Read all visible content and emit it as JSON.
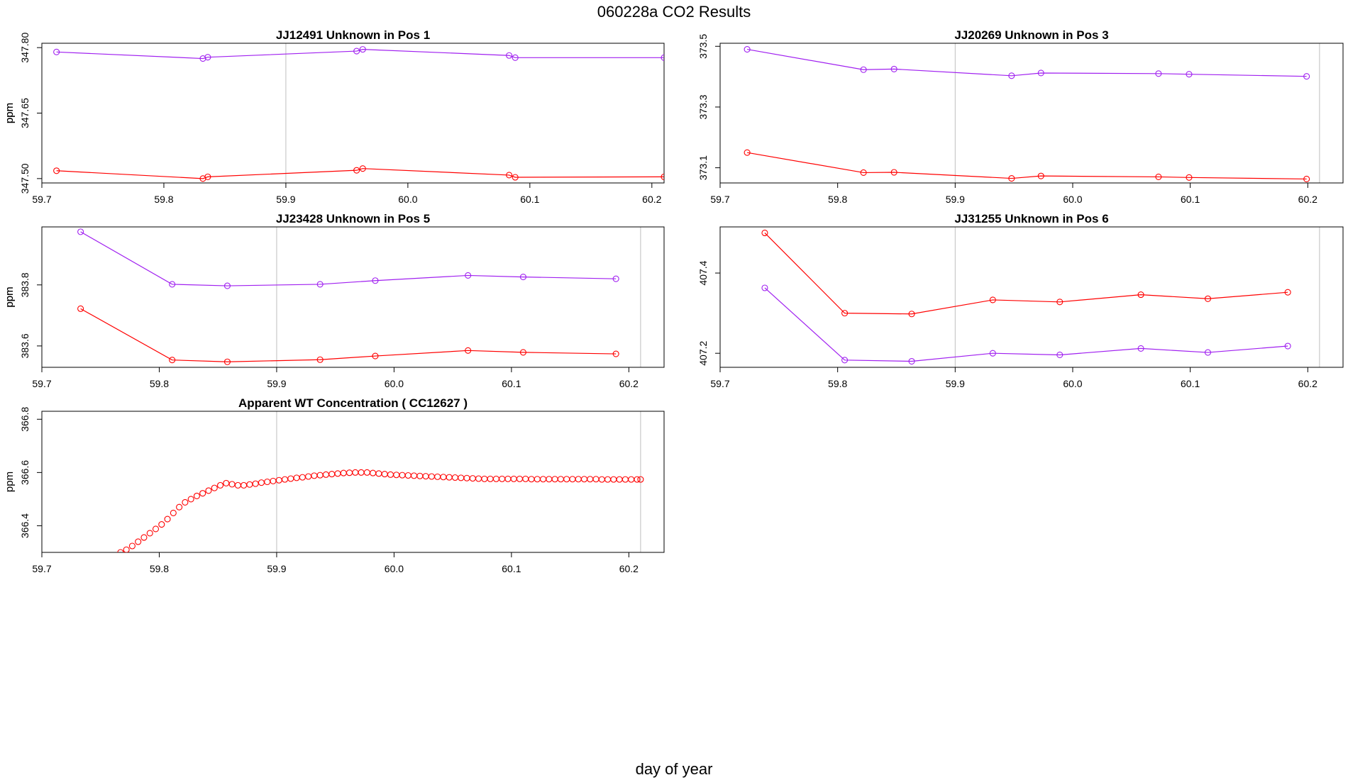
{
  "figure": {
    "title": "060228a  CO2 Results",
    "xlabel": "day of year"
  },
  "colors": {
    "purple": "#a020f0",
    "red": "#ff0000",
    "axis": "#000000",
    "vline": "#bebebe"
  },
  "chart_data": [
    {
      "type": "line",
      "title": "JJ12491    Unknown in Pos 1",
      "ylabel": "ppm",
      "xlim": [
        59.7,
        60.21
      ],
      "ylim": [
        347.49,
        347.81
      ],
      "xticks": [
        59.7,
        59.8,
        59.9,
        60.0,
        60.1,
        60.2
      ],
      "xtick_labels": [
        "59.7",
        "59.8",
        "59.9",
        "60.0",
        "60.1",
        "60.2"
      ],
      "yticks": [
        347.5,
        347.65,
        347.8
      ],
      "ytick_labels": [
        "347.50",
        "347.65",
        "347.80"
      ],
      "vlines": [
        59.9,
        60.21
      ],
      "series": [
        {
          "name": "purple",
          "color": "#a020f0",
          "x": [
            59.712,
            59.832,
            59.836,
            59.958,
            59.963,
            60.083,
            60.088,
            60.21
          ],
          "y": [
            347.79,
            347.775,
            347.778,
            347.792,
            347.796,
            347.782,
            347.777,
            347.777
          ]
        },
        {
          "name": "red",
          "color": "#ff0000",
          "x": [
            59.712,
            59.832,
            59.836,
            59.958,
            59.963,
            60.083,
            60.088,
            60.21
          ],
          "y": [
            347.518,
            347.5,
            347.504,
            347.519,
            347.523,
            347.508,
            347.503,
            347.504
          ]
        }
      ]
    },
    {
      "type": "line",
      "title": "JJ20269    Unknown in Pos 3",
      "ylabel": "ppm",
      "xlim": [
        59.7,
        60.23
      ],
      "ylim": [
        373.05,
        373.51
      ],
      "xticks": [
        59.7,
        59.8,
        59.9,
        60.0,
        60.1,
        60.2
      ],
      "xtick_labels": [
        "59.7",
        "59.8",
        "59.9",
        "60.0",
        "60.1",
        "60.2"
      ],
      "yticks": [
        373.1,
        373.3,
        373.5
      ],
      "ytick_labels": [
        "373.1",
        "373.3",
        "373.5"
      ],
      "vlines": [
        59.9,
        60.21
      ],
      "series": [
        {
          "name": "purple",
          "color": "#a020f0",
          "x": [
            59.723,
            59.822,
            59.848,
            59.948,
            59.973,
            60.073,
            60.099,
            60.199
          ],
          "y": [
            373.49,
            373.423,
            373.425,
            373.403,
            373.412,
            373.41,
            373.408,
            373.401
          ]
        },
        {
          "name": "red",
          "color": "#ff0000",
          "x": [
            59.723,
            59.822,
            59.848,
            59.948,
            59.973,
            60.073,
            60.099,
            60.199
          ],
          "y": [
            373.15,
            373.084,
            373.085,
            373.065,
            373.073,
            373.07,
            373.068,
            373.063
          ]
        }
      ]
    },
    {
      "type": "line",
      "title": "JJ23428    Unknown in Pos 5",
      "ylabel": "ppm",
      "xlim": [
        59.7,
        60.23
      ],
      "ylim": [
        383.53,
        383.99
      ],
      "xticks": [
        59.7,
        59.8,
        59.9,
        60.0,
        60.1,
        60.2
      ],
      "xtick_labels": [
        "59.7",
        "59.8",
        "59.9",
        "60.0",
        "60.1",
        "60.2"
      ],
      "yticks": [
        383.6,
        383.8
      ],
      "ytick_labels": [
        "383.6",
        "383.8"
      ],
      "vlines": [
        59.9,
        60.21
      ],
      "series": [
        {
          "name": "purple",
          "color": "#a020f0",
          "x": [
            59.733,
            59.811,
            59.858,
            59.937,
            59.984,
            60.063,
            60.11,
            60.189
          ],
          "y": [
            383.974,
            383.802,
            383.797,
            383.802,
            383.814,
            383.831,
            383.826,
            383.82
          ]
        },
        {
          "name": "red",
          "color": "#ff0000",
          "x": [
            59.733,
            59.811,
            59.858,
            59.937,
            59.984,
            60.063,
            60.11,
            60.189
          ],
          "y": [
            383.722,
            383.554,
            383.548,
            383.555,
            383.567,
            383.585,
            383.579,
            383.574
          ]
        }
      ]
    },
    {
      "type": "line",
      "title": "JJ31255    Unknown in Pos 6",
      "ylabel": "ppm",
      "xlim": [
        59.7,
        60.23
      ],
      "ylim": [
        407.165,
        407.515
      ],
      "xticks": [
        59.7,
        59.8,
        59.9,
        60.0,
        60.1,
        60.2
      ],
      "xtick_labels": [
        "59.7",
        "59.8",
        "59.9",
        "60.0",
        "60.1",
        "60.2"
      ],
      "yticks": [
        407.2,
        407.4
      ],
      "ytick_labels": [
        "407.2",
        "407.4"
      ],
      "vlines": [
        59.9,
        60.21
      ],
      "series": [
        {
          "name": "red",
          "color": "#ff0000",
          "x": [
            59.738,
            59.806,
            59.863,
            59.932,
            59.989,
            60.058,
            60.115,
            60.183
          ],
          "y": [
            407.5,
            407.3,
            407.298,
            407.333,
            407.328,
            407.346,
            407.336,
            407.352
          ]
        },
        {
          "name": "purple",
          "color": "#a020f0",
          "x": [
            59.738,
            59.806,
            59.863,
            59.932,
            59.989,
            60.058,
            60.115,
            60.183
          ],
          "y": [
            407.363,
            407.183,
            407.18,
            407.2,
            407.196,
            407.212,
            407.202,
            407.218
          ]
        }
      ]
    },
    {
      "type": "scatter",
      "title": "Apparent WT Concentration ( CC12627 )",
      "ylabel": "ppm",
      "xlim": [
        59.7,
        60.23
      ],
      "ylim": [
        366.3,
        366.83
      ],
      "xticks": [
        59.7,
        59.8,
        59.9,
        60.0,
        60.1,
        60.2
      ],
      "xtick_labels": [
        "59.7",
        "59.8",
        "59.9",
        "60.0",
        "60.1",
        "60.2"
      ],
      "yticks": [
        366.4,
        366.6,
        366.8
      ],
      "ytick_labels": [
        "366.4",
        "366.6",
        "366.8"
      ],
      "vlines": [
        59.9,
        60.21
      ],
      "series": [
        {
          "name": "red",
          "color": "#ff0000",
          "x": [
            59.767,
            59.772,
            59.777,
            59.782,
            59.787,
            59.792,
            59.797,
            59.802,
            59.807,
            59.812,
            59.817,
            59.822,
            59.827,
            59.832,
            59.837,
            59.842,
            59.847,
            59.852,
            59.857,
            59.862,
            59.867,
            59.872,
            59.877,
            59.882,
            59.887,
            59.892,
            59.897,
            59.902,
            59.907,
            59.912,
            59.917,
            59.922,
            59.927,
            59.932,
            59.937,
            59.942,
            59.947,
            59.952,
            59.957,
            59.962,
            59.967,
            59.972,
            59.977,
            59.982,
            59.987,
            59.992,
            59.997,
            60.002,
            60.007,
            60.012,
            60.017,
            60.022,
            60.027,
            60.032,
            60.037,
            60.042,
            60.047,
            60.052,
            60.057,
            60.062,
            60.067,
            60.072,
            60.077,
            60.082,
            60.087,
            60.092,
            60.097,
            60.102,
            60.107,
            60.112,
            60.117,
            60.122,
            60.127,
            60.132,
            60.137,
            60.142,
            60.147,
            60.152,
            60.157,
            60.162,
            60.167,
            60.172,
            60.177,
            60.182,
            60.187,
            60.192,
            60.197,
            60.202,
            60.207,
            60.21
          ],
          "y": [
            366.3,
            366.31,
            366.324,
            366.34,
            366.356,
            366.372,
            366.388,
            366.405,
            366.425,
            366.448,
            366.47,
            366.488,
            366.5,
            366.512,
            366.522,
            366.532,
            366.542,
            366.552,
            366.56,
            366.556,
            366.552,
            366.552,
            366.555,
            366.558,
            366.562,
            366.565,
            366.568,
            366.571,
            366.574,
            366.577,
            366.58,
            366.582,
            366.585,
            366.588,
            366.59,
            366.592,
            366.594,
            366.596,
            366.598,
            366.599,
            366.6,
            366.6,
            366.6,
            366.598,
            366.596,
            366.594,
            366.592,
            366.591,
            366.59,
            366.589,
            366.588,
            366.587,
            366.586,
            366.585,
            366.584,
            366.583,
            366.582,
            366.581,
            366.58,
            366.579,
            366.578,
            366.577,
            366.576,
            366.576,
            366.576,
            366.576,
            366.576,
            366.576,
            366.576,
            366.576,
            366.575,
            366.575,
            366.575,
            366.575,
            366.575,
            366.575,
            366.575,
            366.575,
            366.575,
            366.575,
            366.575,
            366.575,
            366.574,
            366.574,
            366.574,
            366.574,
            366.574,
            366.574,
            366.574,
            366.574
          ]
        }
      ]
    }
  ]
}
